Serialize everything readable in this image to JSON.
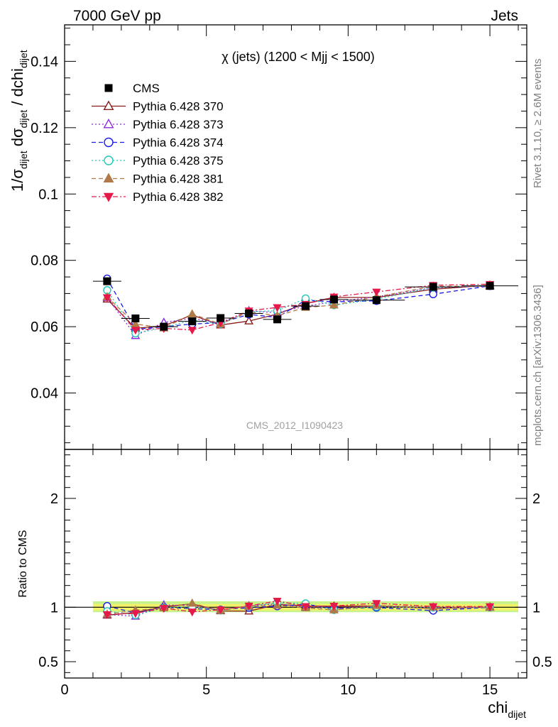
{
  "header": {
    "left": "7000 GeV pp",
    "right": "Jets"
  },
  "side": {
    "rivet": "Rivet 3.1.10, ≥ 2.6M events",
    "mcplots": "mcplots.cern.ch [arXiv:1306.3436]"
  },
  "chart_data": {
    "type": "scatter",
    "title": "χ (jets) (1200 < Mjj < 1500)",
    "analysis_id": "CMS_2012_I1090423",
    "xlabel": "chi_dijet",
    "ylabel": "1/σ_dijet dσ_dijet / dchi_dijet",
    "ratio_ylabel": "Ratio to CMS",
    "xlim": [
      0,
      16.3
    ],
    "ylim": [
      0.023,
      0.151
    ],
    "ratio_ylim": [
      0.35,
      2.45
    ],
    "xticks": [
      0,
      5,
      10,
      15
    ],
    "yticks": [
      0.04,
      0.06,
      0.08,
      0.1,
      0.12,
      0.14
    ],
    "ytick_labels": [
      "0.04",
      "0.06",
      "0.08",
      "0.1",
      "0.12",
      "0.14"
    ],
    "ratio_yticks": [
      0.5,
      1,
      2
    ],
    "ratio_ytick_labels": [
      "0.5",
      "1",
      "2"
    ],
    "legend_position": "top-left",
    "x": [
      1.5,
      2.5,
      3.5,
      4.5,
      5.5,
      6.5,
      7.5,
      8.5,
      9.5,
      11,
      13,
      15
    ],
    "x_bins": [
      [
        1,
        2
      ],
      [
        2,
        3
      ],
      [
        3,
        4
      ],
      [
        4,
        5
      ],
      [
        5,
        6
      ],
      [
        6,
        7
      ],
      [
        7,
        8
      ],
      [
        8,
        9
      ],
      [
        9,
        10
      ],
      [
        10,
        12
      ],
      [
        12,
        14
      ],
      [
        14,
        16
      ]
    ],
    "series": [
      {
        "name": "CMS",
        "color": "#000000",
        "marker": "square-filled",
        "line": "none",
        "values": [
          0.0737,
          0.0625,
          0.06,
          0.0616,
          0.0626,
          0.064,
          0.0622,
          0.0662,
          0.0682,
          0.068,
          0.072,
          0.0723
        ]
      },
      {
        "name": "Pythia 6.428 370",
        "color": "#8b1a1a",
        "marker": "triangle-open",
        "line": "solid",
        "values": [
          0.0683,
          0.0595,
          0.0603,
          0.0635,
          0.0605,
          0.0617,
          0.0638,
          0.067,
          0.0688,
          0.0688,
          0.0713,
          0.0725
        ]
      },
      {
        "name": "Pythia 6.428 373",
        "color": "#8a2be2",
        "marker": "triangle-open",
        "line": "dotted",
        "values": [
          0.0688,
          0.0573,
          0.0613,
          0.0625,
          0.061,
          0.0648,
          0.0642,
          0.0662,
          0.0675,
          0.069,
          0.0718,
          0.0722
        ]
      },
      {
        "name": "Pythia 6.428 374",
        "color": "#1a1ae6",
        "marker": "circle-open",
        "line": "dashed",
        "values": [
          0.0745,
          0.0592,
          0.06,
          0.0608,
          0.0612,
          0.0637,
          0.0628,
          0.068,
          0.0675,
          0.0678,
          0.0698,
          0.0723
        ]
      },
      {
        "name": "Pythia 6.428 375",
        "color": "#20c8b4",
        "marker": "circle-open",
        "line": "dotted",
        "values": [
          0.071,
          0.058,
          0.0597,
          0.062,
          0.0608,
          0.0645,
          0.0648,
          0.0685,
          0.0665,
          0.0683,
          0.0718,
          0.0725
        ]
      },
      {
        "name": "Pythia 6.428 381",
        "color": "#b07a48",
        "marker": "triangle-filled",
        "line": "dashed",
        "values": [
          0.069,
          0.0608,
          0.0596,
          0.0638,
          0.0608,
          0.0645,
          0.0633,
          0.0658,
          0.0665,
          0.069,
          0.0722,
          0.0722
        ]
      },
      {
        "name": "Pythia 6.428 382",
        "color": "#e6194b",
        "marker": "triangle-down-filled",
        "line": "dashdot",
        "values": [
          0.0688,
          0.059,
          0.0595,
          0.059,
          0.0612,
          0.0648,
          0.0658,
          0.0668,
          0.069,
          0.0705,
          0.0725,
          0.0728
        ]
      }
    ],
    "band": {
      "inner_color": "#f2f26a",
      "outer_color": "#c6f28c",
      "inner": [
        0.97,
        1.03
      ],
      "outer": [
        0.955,
        1.055
      ]
    }
  }
}
